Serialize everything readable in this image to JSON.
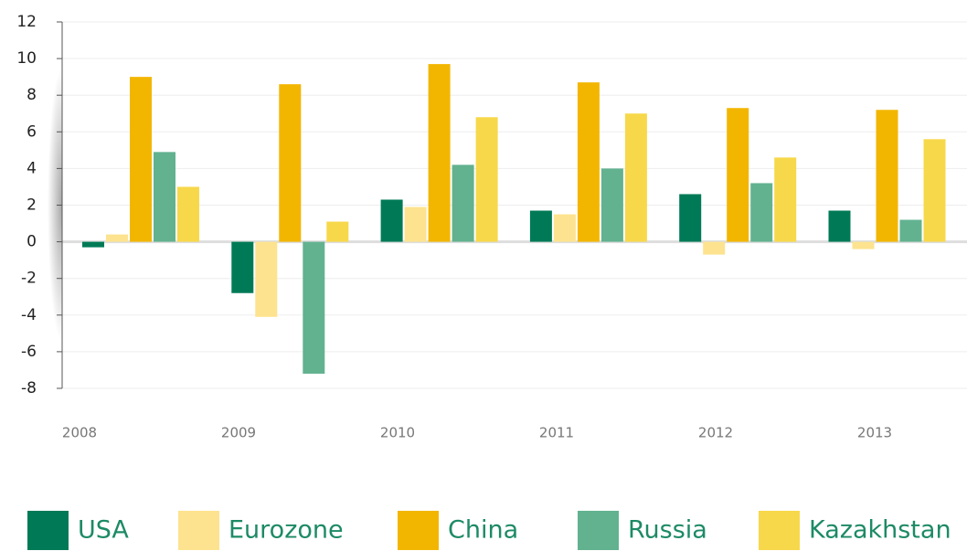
{
  "chart_data": {
    "type": "bar",
    "categories": [
      "2008",
      "2009",
      "2010",
      "2011",
      "2012",
      "2013"
    ],
    "series": [
      {
        "name": "USA",
        "color": "#007a56",
        "values": [
          -0.3,
          -2.8,
          2.3,
          1.7,
          2.6,
          1.7
        ]
      },
      {
        "name": "Eurozone",
        "color": "#fde38f",
        "values": [
          0.4,
          -4.1,
          1.9,
          1.5,
          -0.7,
          -0.4
        ]
      },
      {
        "name": "China",
        "color": "#f2b600",
        "values": [
          9.0,
          8.6,
          9.7,
          8.7,
          7.3,
          7.2
        ]
      },
      {
        "name": "Russia",
        "color": "#62b290",
        "values": [
          4.9,
          -7.2,
          4.2,
          4.0,
          3.2,
          1.2
        ]
      },
      {
        "name": "Kazakhstan",
        "color": "#f7d84a",
        "values": [
          3.0,
          1.1,
          6.8,
          7.0,
          4.6,
          5.6
        ]
      }
    ],
    "ylim": [
      -8,
      12
    ],
    "yticks": [
      -8,
      -6,
      -4,
      -2,
      0,
      2,
      4,
      6,
      8,
      10,
      12
    ],
    "grid": true
  }
}
